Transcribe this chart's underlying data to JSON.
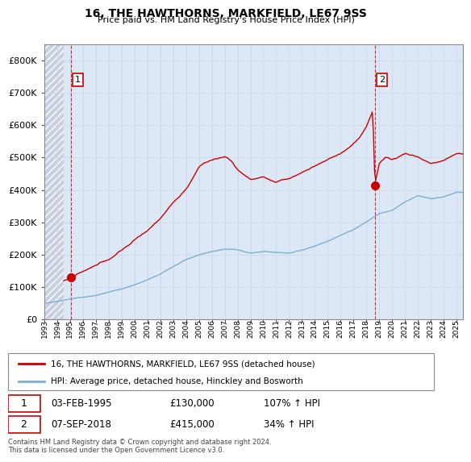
{
  "title": "16, THE HAWTHORNS, MARKFIELD, LE67 9SS",
  "subtitle": "Price paid vs. HM Land Registry's House Price Index (HPI)",
  "ylim": [
    0,
    850000
  ],
  "yticks": [
    0,
    100000,
    200000,
    300000,
    400000,
    500000,
    600000,
    700000,
    800000
  ],
  "ytick_labels": [
    "£0",
    "£100K",
    "£200K",
    "£300K",
    "£400K",
    "£500K",
    "£600K",
    "£700K",
    "£800K"
  ],
  "hpi_color": "#7bafd4",
  "price_color": "#cc0000",
  "sale1_x": 1995.08,
  "sale1_y": 130000,
  "sale1_label": "03-FEB-1995",
  "sale1_pct": "107% ↑ HPI",
  "sale2_x": 2018.67,
  "sale2_y": 415000,
  "sale2_label": "07-SEP-2018",
  "sale2_pct": "34% ↑ HPI",
  "legend_line1": "16, THE HAWTHORNS, MARKFIELD, LE67 9SS (detached house)",
  "legend_line2": "HPI: Average price, detached house, Hinckley and Bosworth",
  "footer": "Contains HM Land Registry data © Crown copyright and database right 2024.\nThis data is licensed under the Open Government Licence v3.0.",
  "grid_color": "#c8d4e8",
  "plot_bg": "#dce8f5",
  "hatch_color": "#c8d0e0",
  "xlim_left": 1993.0,
  "xlim_right": 2025.5
}
